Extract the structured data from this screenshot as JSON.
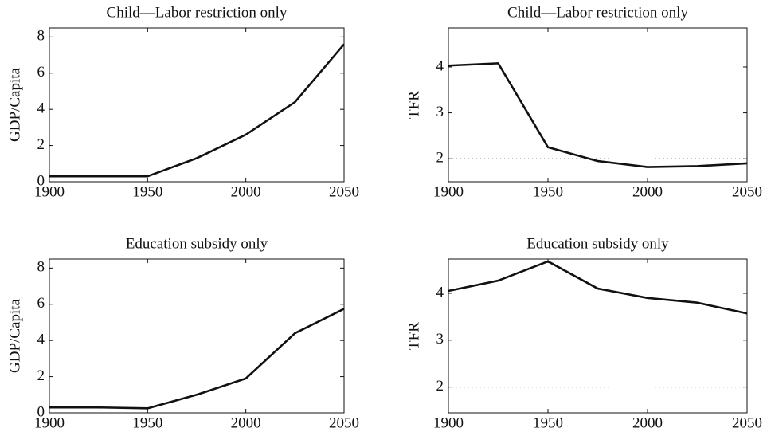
{
  "chart_data": [
    {
      "type": "line",
      "title": "Child—Labor restriction only",
      "y_label": "GDP/Capita",
      "x": [
        1900,
        1925,
        1950,
        1975,
        2000,
        2025,
        2050
      ],
      "series": [
        {
          "color": "#111111",
          "values": [
            0.3,
            0.3,
            0.3,
            1.3,
            2.6,
            4.4,
            7.6
          ]
        }
      ],
      "xlim": [
        1900,
        2050
      ],
      "xticks": [
        1900,
        1950,
        2000,
        2050
      ],
      "ylim": [
        0,
        8.5
      ],
      "yticks": [
        0,
        2,
        4,
        6,
        8
      ]
    },
    {
      "type": "line",
      "title": "Child—Labor restriction only",
      "y_label": "TFR",
      "x": [
        1900,
        1925,
        1950,
        1975,
        2000,
        2025,
        2050
      ],
      "series": [
        {
          "color": "#111111",
          "values": [
            4.03,
            4.08,
            2.25,
            1.95,
            1.82,
            1.84,
            1.9
          ]
        }
      ],
      "reference_line": 2,
      "xlim": [
        1900,
        2050
      ],
      "xticks": [
        1900,
        1950,
        2000,
        2050
      ],
      "ylim": [
        1.5,
        4.85
      ],
      "yticks": [
        2,
        3,
        4
      ]
    },
    {
      "type": "line",
      "title": "Education subsidy only",
      "y_label": "GDP/Capita",
      "x": [
        1900,
        1925,
        1950,
        1975,
        2000,
        2025,
        2050
      ],
      "series": [
        {
          "color": "#111111",
          "values": [
            0.3,
            0.3,
            0.25,
            1.0,
            1.9,
            4.4,
            5.75
          ]
        }
      ],
      "xlim": [
        1900,
        2050
      ],
      "xticks": [
        1900,
        1950,
        2000,
        2050
      ],
      "ylim": [
        0,
        8.5
      ],
      "yticks": [
        0,
        2,
        4,
        6,
        8
      ]
    },
    {
      "type": "line",
      "title": "Education subsidy only",
      "y_label": "TFR",
      "x": [
        1900,
        1925,
        1950,
        1975,
        2000,
        2025,
        2050
      ],
      "series": [
        {
          "color": "#111111",
          "values": [
            4.05,
            4.27,
            4.68,
            4.1,
            3.9,
            3.8,
            3.57
          ]
        }
      ],
      "reference_line": 2,
      "xlim": [
        1900,
        2050
      ],
      "xticks": [
        1900,
        1950,
        2000,
        2050
      ],
      "ylim": [
        1.45,
        4.73
      ],
      "yticks": [
        2,
        3,
        4
      ]
    }
  ]
}
